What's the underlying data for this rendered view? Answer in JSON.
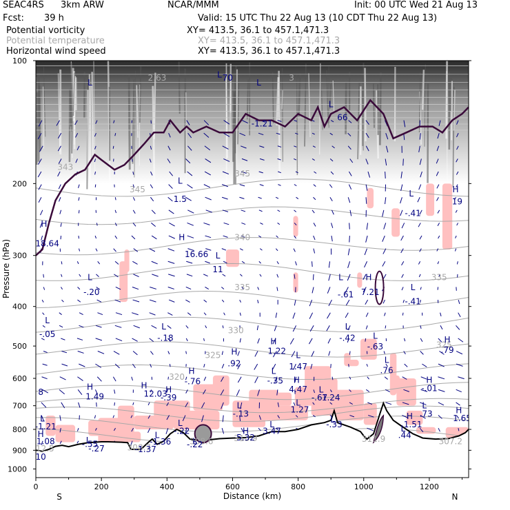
{
  "header": {
    "project": "SEAC4RS",
    "model": "3km ARW",
    "org": "NCAR/MMM",
    "init": "Init: 00 UTC Wed 21 Aug 13",
    "fcst_label": "Fcst:",
    "fcst_value": "39 h",
    "valid": "Valid: 15 UTC Thu 22 Aug 13 (10 CDT Thu 22 Aug 13)"
  },
  "legend": [
    {
      "name": "Potential vorticity",
      "xy": "XY= 413.5, 36.1 to 457.1,471.3",
      "color": "#000000"
    },
    {
      "name": "Potential temperature",
      "xy": "XY= 413.5, 36.1 to 457.1,471.3",
      "color": "#a8a8a8"
    },
    {
      "name": "Horizontal wind speed",
      "xy": "XY= 413.5, 36.1 to 457.1,471.3",
      "color": "#000080"
    }
  ],
  "chart_data": {
    "type": "cross-section",
    "xlabel": "Distance (km)",
    "ylabel": "Pressure (hPa)",
    "xlim": [
      0,
      1320
    ],
    "ylim": [
      100,
      1050
    ],
    "log_y": true,
    "x_ticks": [
      0,
      200,
      400,
      600,
      800,
      1000,
      1200
    ],
    "y_ticks": [
      100,
      200,
      300,
      400,
      500,
      600,
      700,
      800,
      900,
      1000
    ],
    "x_end_labels": {
      "left": "S",
      "right": "N"
    },
    "colors": {
      "pv_fill": "#ffc0c0",
      "pv_contour": "#3a0a3a",
      "theta": "#a8a8a8",
      "wind": "#000080",
      "terrain": "#000000"
    },
    "terrain": [
      [
        0,
        900
      ],
      [
        20,
        905
      ],
      [
        40,
        895
      ],
      [
        60,
        880
      ],
      [
        80,
        875
      ],
      [
        100,
        882
      ],
      [
        130,
        870
      ],
      [
        160,
        862
      ],
      [
        180,
        860
      ],
      [
        200,
        858
      ],
      [
        220,
        858
      ],
      [
        260,
        860
      ],
      [
        280,
        862
      ],
      [
        290,
        895
      ],
      [
        320,
        896
      ],
      [
        345,
        858
      ],
      [
        355,
        845
      ],
      [
        370,
        870
      ],
      [
        390,
        855
      ],
      [
        410,
        820
      ],
      [
        430,
        800
      ],
      [
        450,
        815
      ],
      [
        470,
        845
      ],
      [
        500,
        852
      ],
      [
        520,
        850
      ],
      [
        560,
        843
      ],
      [
        600,
        840
      ],
      [
        640,
        838
      ],
      [
        680,
        830
      ],
      [
        720,
        810
      ],
      [
        760,
        810
      ],
      [
        800,
        800
      ],
      [
        840,
        780
      ],
      [
        880,
        770
      ],
      [
        900,
        760
      ],
      [
        910,
        720
      ],
      [
        920,
        770
      ],
      [
        960,
        790
      ],
      [
        990,
        810
      ],
      [
        1000,
        830
      ],
      [
        1010,
        845
      ],
      [
        1030,
        820
      ],
      [
        1050,
        730
      ],
      [
        1060,
        690
      ],
      [
        1070,
        720
      ],
      [
        1090,
        760
      ],
      [
        1110,
        780
      ],
      [
        1150,
        820
      ],
      [
        1180,
        840
      ],
      [
        1220,
        845
      ],
      [
        1260,
        842
      ],
      [
        1290,
        830
      ],
      [
        1310,
        815
      ],
      [
        1320,
        800
      ]
    ],
    "theta_labels": [
      {
        "text": "345",
        "x": 630,
        "p": 192
      },
      {
        "text": "345",
        "x": 310,
        "p": 210
      },
      {
        "text": "340",
        "x": 630,
        "p": 275
      },
      {
        "text": "335",
        "x": 630,
        "p": 365
      },
      {
        "text": "335",
        "x": 1230,
        "p": 345
      },
      {
        "text": "330",
        "x": 610,
        "p": 465
      },
      {
        "text": "325",
        "x": 540,
        "p": 535
      },
      {
        "text": "325",
        "x": 1245,
        "p": 505
      },
      {
        "text": "320",
        "x": 430,
        "p": 605
      },
      {
        "text": "308.6",
        "x": 505,
        "p": 870
      },
      {
        "text": "313.9",
        "x": 640,
        "p": 855
      },
      {
        "text": "311.9",
        "x": 1030,
        "p": 858
      },
      {
        "text": "307.2",
        "x": 1265,
        "p": 870
      },
      {
        "text": "308.7",
        "x": 315,
        "p": 900
      },
      {
        "text": "312.5",
        "x": 20,
        "p": 905
      },
      {
        "text": "343",
        "x": 90,
        "p": 185
      },
      {
        "text": "2.63",
        "x": 370,
        "p": 112
      },
      {
        "text": "3",
        "x": 780,
        "p": 112
      }
    ],
    "hl_labels": [
      {
        "text": "H",
        "x": 25,
        "p": 255,
        "kind": "H"
      },
      {
        "text": "18.64",
        "x": 35,
        "p": 285,
        "kind": "V"
      },
      {
        "text": "L",
        "x": 165,
        "p": 115,
        "kind": "L"
      },
      {
        "text": "L",
        "x": 440,
        "p": 200,
        "kind": "L"
      },
      {
        "text": "1.5",
        "x": 440,
        "p": 222,
        "kind": "V"
      },
      {
        "text": "H",
        "x": 445,
        "p": 275,
        "kind": "H"
      },
      {
        "text": "16.66",
        "x": 490,
        "p": 303,
        "kind": "V"
      },
      {
        "text": "L",
        "x": 555,
        "p": 305,
        "kind": "L"
      },
      {
        "text": "11",
        "x": 555,
        "p": 330,
        "kind": "V"
      },
      {
        "text": "L",
        "x": 165,
        "p": 345,
        "kind": "L"
      },
      {
        "text": "-.20",
        "x": 170,
        "p": 375,
        "kind": "V"
      },
      {
        "text": "L",
        "x": 35,
        "p": 440,
        "kind": "L"
      },
      {
        "text": "-.05",
        "x": 35,
        "p": 475,
        "kind": "V"
      },
      {
        "text": "L",
        "x": 390,
        "p": 455,
        "kind": "L"
      },
      {
        "text": "-.18",
        "x": 395,
        "p": 485,
        "kind": "V"
      },
      {
        "text": "L",
        "x": 680,
        "p": 115,
        "kind": "L"
      },
      {
        "text": "-1.21",
        "x": 690,
        "p": 145,
        "kind": "V"
      },
      {
        "text": "L",
        "x": 560,
        "p": 110,
        "kind": "L"
      },
      {
        "text": "70",
        "x": 585,
        "p": 112,
        "kind": "V"
      },
      {
        "text": "L",
        "x": 900,
        "p": 130,
        "kind": "L"
      },
      {
        "text": "66",
        "x": 935,
        "p": 140,
        "kind": "V"
      },
      {
        "text": "H",
        "x": 1015,
        "p": 345,
        "kind": "H"
      },
      {
        "text": "7.21",
        "x": 1020,
        "p": 375,
        "kind": "V"
      },
      {
        "text": "L",
        "x": 930,
        "p": 345,
        "kind": "L"
      },
      {
        "text": "-.61",
        "x": 945,
        "p": 380,
        "kind": "V"
      },
      {
        "text": "L",
        "x": 1145,
        "p": 215,
        "kind": "L"
      },
      {
        "text": "-.41",
        "x": 1150,
        "p": 240,
        "kind": "V"
      },
      {
        "text": "L",
        "x": 1150,
        "p": 365,
        "kind": "L"
      },
      {
        "text": "-.41",
        "x": 1150,
        "p": 395,
        "kind": "V"
      },
      {
        "text": "H",
        "x": 1280,
        "p": 210,
        "kind": "H"
      },
      {
        "text": "19",
        "x": 1285,
        "p": 225,
        "kind": "V"
      },
      {
        "text": "L",
        "x": 950,
        "p": 455,
        "kind": "L"
      },
      {
        "text": "-.42",
        "x": 950,
        "p": 485,
        "kind": "V"
      },
      {
        "text": "L",
        "x": 1035,
        "p": 480,
        "kind": "L"
      },
      {
        "text": "-.63",
        "x": 1035,
        "p": 510,
        "kind": "V"
      },
      {
        "text": "H",
        "x": 1255,
        "p": 490,
        "kind": "H"
      },
      {
        "text": ".79",
        "x": 1255,
        "p": 520,
        "kind": "V"
      },
      {
        "text": "H",
        "x": 725,
        "p": 495,
        "kind": "H"
      },
      {
        "text": "1.22",
        "x": 735,
        "p": 523,
        "kind": "V"
      },
      {
        "text": "H",
        "x": 605,
        "p": 525,
        "kind": "H"
      },
      {
        "text": ".92",
        "x": 605,
        "p": 560,
        "kind": "V"
      },
      {
        "text": "L",
        "x": 800,
        "p": 535,
        "kind": "L"
      },
      {
        "text": "1.47",
        "x": 800,
        "p": 570,
        "kind": "V"
      },
      {
        "text": "L",
        "x": 1070,
        "p": 550,
        "kind": "L"
      },
      {
        "text": ".76",
        "x": 1070,
        "p": 583,
        "kind": "V"
      },
      {
        "text": "H",
        "x": 475,
        "p": 585,
        "kind": "H"
      },
      {
        "text": "-.76",
        "x": 478,
        "p": 620,
        "kind": "V"
      },
      {
        "text": "L",
        "x": 725,
        "p": 585,
        "kind": "L"
      },
      {
        "text": "-.35",
        "x": 730,
        "p": 618,
        "kind": "V"
      },
      {
        "text": "H",
        "x": 795,
        "p": 615,
        "kind": "H"
      },
      {
        "text": "4.47",
        "x": 800,
        "p": 648,
        "kind": "V"
      },
      {
        "text": "H",
        "x": 1200,
        "p": 615,
        "kind": "H"
      },
      {
        "text": "-.01",
        "x": 1200,
        "p": 645,
        "kind": "V"
      },
      {
        "text": "H",
        "x": 165,
        "p": 640,
        "kind": "H"
      },
      {
        "text": "1.49",
        "x": 180,
        "p": 675,
        "kind": "V"
      },
      {
        "text": "H",
        "x": 330,
        "p": 635,
        "kind": "H"
      },
      {
        "text": "12.03",
        "x": 365,
        "p": 665,
        "kind": "V"
      },
      {
        "text": "H",
        "x": 405,
        "p": 650,
        "kind": "H"
      },
      {
        "text": "-.39",
        "x": 405,
        "p": 680,
        "kind": "V"
      },
      {
        "text": "L",
        "x": 870,
        "p": 650,
        "kind": "L"
      },
      {
        "text": "-.67",
        "x": 865,
        "p": 680,
        "kind": "V"
      },
      {
        "text": "1.24",
        "x": 900,
        "p": 680,
        "kind": "V"
      },
      {
        "text": "L",
        "x": 800,
        "p": 700,
        "kind": "L"
      },
      {
        "text": "1.27",
        "x": 805,
        "p": 727,
        "kind": "V"
      },
      {
        "text": "L",
        "x": 620,
        "p": 710,
        "kind": "L"
      },
      {
        "text": "-.13",
        "x": 625,
        "p": 745,
        "kind": "V"
      },
      {
        "text": "L",
        "x": 1185,
        "p": 710,
        "kind": "L"
      },
      {
        "text": ".73",
        "x": 1190,
        "p": 745,
        "kind": "V"
      },
      {
        "text": "H",
        "x": 1290,
        "p": 730,
        "kind": "H"
      },
      {
        "text": "1.65",
        "x": 1300,
        "p": 763,
        "kind": "V"
      },
      {
        "text": "L",
        "x": 20,
        "p": 765,
        "kind": "L"
      },
      {
        "text": "-1.21",
        "x": 30,
        "p": 800,
        "kind": "V"
      },
      {
        "text": "L",
        "x": 905,
        "p": 770,
        "kind": "L"
      },
      {
        "text": "-.33",
        "x": 910,
        "p": 790,
        "kind": "V"
      },
      {
        "text": "H",
        "x": 1140,
        "p": 755,
        "kind": "H"
      },
      {
        "text": "1.51",
        "x": 1150,
        "p": 790,
        "kind": "V"
      },
      {
        "text": "L",
        "x": 440,
        "p": 785,
        "kind": "L"
      },
      {
        "text": "-.22",
        "x": 445,
        "p": 820,
        "kind": "V"
      },
      {
        "text": "L",
        "x": 720,
        "p": 790,
        "kind": "L"
      },
      {
        "text": "3.47",
        "x": 720,
        "p": 820,
        "kind": "V"
      },
      {
        "text": "H",
        "x": 640,
        "p": 820,
        "kind": "H"
      },
      {
        "text": "5.32",
        "x": 640,
        "p": 852,
        "kind": "V"
      },
      {
        "text": "L",
        "x": 1120,
        "p": 810,
        "kind": "L"
      },
      {
        "text": ".44",
        "x": 1125,
        "p": 840,
        "kind": "V"
      },
      {
        "text": "H",
        "x": 15,
        "p": 835,
        "kind": "H"
      },
      {
        "text": "1.08",
        "x": 30,
        "p": 870,
        "kind": "V"
      },
      {
        "text": "L",
        "x": 370,
        "p": 840,
        "kind": "L"
      },
      {
        "text": "-1.36",
        "x": 380,
        "p": 872,
        "kind": "V"
      },
      {
        "text": "L",
        "x": 485,
        "p": 870,
        "kind": "L"
      },
      {
        "text": "-.22",
        "x": 485,
        "p": 885,
        "kind": "V"
      },
      {
        "text": "L",
        "x": 160,
        "p": 865,
        "kind": "L"
      },
      {
        "text": "-.55",
        "x": 165,
        "p": 883,
        "kind": "V"
      },
      {
        "text": "-.27",
        "x": 185,
        "p": 905,
        "kind": "V"
      },
      {
        "text": "-1.37",
        "x": 335,
        "p": 910,
        "kind": "V"
      },
      {
        "text": "10",
        "x": 15,
        "p": 950,
        "kind": "V"
      },
      {
        "text": "8",
        "x": 15,
        "p": 658,
        "kind": "V"
      }
    ]
  }
}
